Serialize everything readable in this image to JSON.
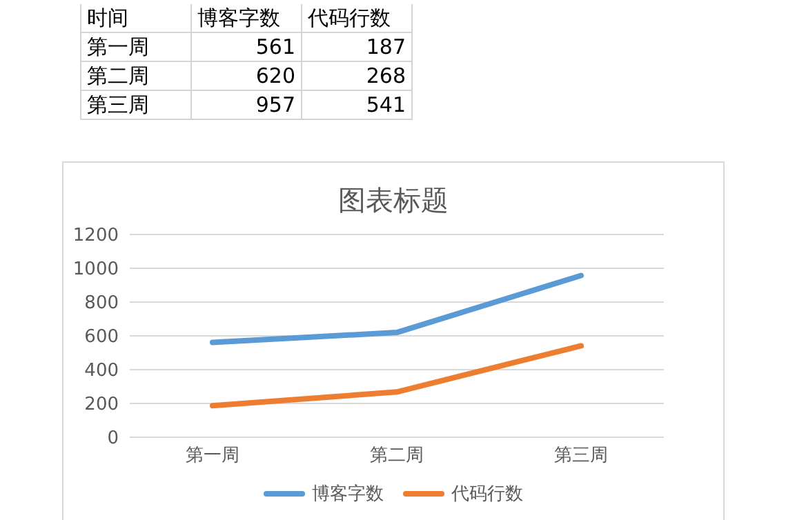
{
  "chart_data": {
    "type": "line",
    "title": "图表标题",
    "categories": [
      "第一周",
      "第二周",
      "第三周"
    ],
    "series": [
      {
        "name": "博客字数",
        "color": "#5b9bd5",
        "values": [
          561,
          620,
          957
        ]
      },
      {
        "name": "代码行数",
        "color": "#ed7d31",
        "values": [
          187,
          268,
          541
        ]
      }
    ],
    "ylim": [
      0,
      1200
    ],
    "yticks": [
      0,
      200,
      400,
      600,
      800,
      1000,
      1200
    ],
    "grid": "y",
    "legend": "bottom",
    "marker": "none",
    "line_style": "solid",
    "annotations": [
      "时间",
      "561",
      "187",
      "620",
      "268",
      "957",
      "541"
    ]
  }
}
